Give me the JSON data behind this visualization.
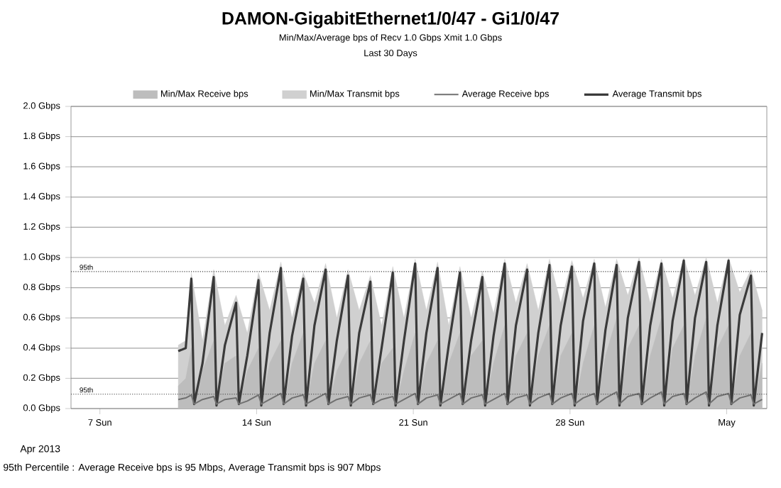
{
  "chart_data": {
    "type": "line",
    "title": "DAMON-GigabitEthernet1/0/47 - Gi1/0/47",
    "subtitle": "Min/Max/Average bps of    Recv 1.0 Gbps   Xmit 1.0 Gbps",
    "annotations": [
      "Last 30 Days",
      "Apr 2013",
      "95th Percentile : Average Receive bps is 95 Mbps, Average Transmit bps is 907 Mbps"
    ],
    "x": [
      "2013-04-10T12:00",
      "2013-04-10T20:00",
      "2013-04-11T02:00",
      "2013-04-11T05:00",
      "2013-04-11T14:00",
      "2013-04-12T02:00",
      "2013-04-12T05:00",
      "2013-04-12T14:00",
      "2013-04-13T02:00",
      "2013-04-13T05:00",
      "2013-04-13T14:00",
      "2013-04-14T02:00",
      "2013-04-14T05:00",
      "2013-04-14T14:00",
      "2013-04-15T02:00",
      "2013-04-15T05:00",
      "2013-04-15T14:00",
      "2013-04-16T02:00",
      "2013-04-16T05:00",
      "2013-04-16T14:00",
      "2013-04-17T02:00",
      "2013-04-17T05:00",
      "2013-04-17T14:00",
      "2013-04-18T02:00",
      "2013-04-18T05:00",
      "2013-04-18T14:00",
      "2013-04-19T02:00",
      "2013-04-19T05:00",
      "2013-04-19T14:00",
      "2013-04-20T02:00",
      "2013-04-20T05:00",
      "2013-04-20T14:00",
      "2013-04-21T02:00",
      "2013-04-21T05:00",
      "2013-04-21T14:00",
      "2013-04-22T02:00",
      "2013-04-22T05:00",
      "2013-04-22T14:00",
      "2013-04-23T02:00",
      "2013-04-23T05:00",
      "2013-04-23T14:00",
      "2013-04-24T02:00",
      "2013-04-24T05:00",
      "2013-04-24T14:00",
      "2013-04-25T02:00",
      "2013-04-25T05:00",
      "2013-04-25T14:00",
      "2013-04-26T02:00",
      "2013-04-26T05:00",
      "2013-04-26T14:00",
      "2013-04-27T02:00",
      "2013-04-27T05:00",
      "2013-04-27T14:00",
      "2013-04-28T02:00",
      "2013-04-28T05:00",
      "2013-04-28T14:00",
      "2013-04-29T02:00",
      "2013-04-29T05:00",
      "2013-04-29T14:00",
      "2013-04-30T02:00",
      "2013-04-30T05:00",
      "2013-04-30T14:00",
      "2013-05-01T02:00",
      "2013-05-01T05:00",
      "2013-05-01T14:00",
      "2013-05-02T02:00",
      "2013-05-02T05:00",
      "2013-05-02T14:00",
      "2013-05-03T02:00",
      "2013-05-03T05:00",
      "2013-05-03T14:00",
      "2013-05-04T02:00",
      "2013-05-04T05:00",
      "2013-05-04T14:00",
      "2013-05-05T02:00",
      "2013-05-05T05:00",
      "2013-05-05T14:00",
      "2013-05-06T02:00",
      "2013-05-06T05:00",
      "2013-05-06T14:00"
    ],
    "series": [
      {
        "name": "Min/Max Receive bps",
        "type": "area",
        "color": "#bdbdbd",
        "values": [
          0.15,
          0.2,
          0.4,
          0.02,
          0.25,
          0.45,
          0.02,
          0.3,
          0.35,
          0.02,
          0.25,
          0.4,
          0.02,
          0.3,
          0.45,
          0.02,
          0.3,
          0.5,
          0.02,
          0.3,
          0.45,
          0.02,
          0.25,
          0.4,
          0.02,
          0.3,
          0.45,
          0.02,
          0.3,
          0.4,
          0.02,
          0.25,
          0.5,
          0.02,
          0.3,
          0.45,
          0.02,
          0.3,
          0.5,
          0.02,
          0.35,
          0.45,
          0.02,
          0.3,
          0.55,
          0.02,
          0.35,
          0.5,
          0.02,
          0.35,
          0.55,
          0.02,
          0.35,
          0.5,
          0.02,
          0.3,
          0.55,
          0.02,
          0.35,
          0.6,
          0.02,
          0.4,
          0.55,
          0.02,
          0.35,
          0.6,
          0.02,
          0.4,
          0.55,
          0.02,
          0.35,
          0.6,
          0.02,
          0.4,
          0.55,
          0.02,
          0.35,
          0.5,
          0.02,
          0.3
        ]
      },
      {
        "name": "Min/Max Transmit bps",
        "type": "area",
        "color": "#d0d0d0",
        "values": [
          0.42,
          0.45,
          0.9,
          null,
          0.45,
          0.92,
          null,
          0.55,
          0.75,
          null,
          0.5,
          0.9,
          null,
          0.65,
          0.97,
          null,
          0.6,
          0.9,
          null,
          0.7,
          0.96,
          null,
          0.6,
          0.92,
          null,
          0.65,
          0.88,
          null,
          0.55,
          0.94,
          null,
          0.6,
          0.99,
          null,
          0.65,
          0.97,
          null,
          0.55,
          0.94,
          null,
          0.6,
          0.91,
          null,
          0.63,
          0.99,
          null,
          0.7,
          0.96,
          null,
          0.65,
          0.99,
          null,
          0.7,
          0.98,
          null,
          0.73,
          0.99,
          null,
          0.67,
          0.99,
          null,
          0.75,
          1.0,
          null,
          0.7,
          0.99,
          null,
          0.73,
          1.0,
          null,
          0.75,
          1.0,
          null,
          0.7,
          1.0,
          null,
          0.77,
          0.92,
          null,
          0.65
        ]
      },
      {
        "name": "Average Receive bps",
        "color": "#707070",
        "values": [
          0.06,
          0.07,
          0.09,
          0.03,
          0.06,
          0.08,
          0.03,
          0.06,
          0.07,
          0.03,
          0.05,
          0.09,
          0.03,
          0.06,
          0.1,
          0.03,
          0.07,
          0.09,
          0.03,
          0.06,
          0.1,
          0.03,
          0.06,
          0.08,
          0.03,
          0.07,
          0.09,
          0.03,
          0.06,
          0.08,
          0.03,
          0.06,
          0.1,
          0.03,
          0.07,
          0.09,
          0.03,
          0.06,
          0.1,
          0.03,
          0.07,
          0.09,
          0.03,
          0.06,
          0.1,
          0.03,
          0.07,
          0.09,
          0.03,
          0.07,
          0.1,
          0.03,
          0.07,
          0.1,
          0.03,
          0.07,
          0.1,
          0.03,
          0.07,
          0.11,
          0.03,
          0.08,
          0.1,
          0.03,
          0.07,
          0.11,
          0.03,
          0.08,
          0.1,
          0.03,
          0.07,
          0.11,
          0.03,
          0.08,
          0.1,
          0.03,
          0.07,
          0.09,
          0.03,
          0.06
        ]
      },
      {
        "name": "Average Transmit bps",
        "color": "#3a3a3a",
        "values": [
          0.38,
          0.4,
          0.86,
          0.03,
          0.3,
          0.87,
          0.02,
          0.42,
          0.7,
          0.03,
          0.35,
          0.85,
          0.02,
          0.5,
          0.93,
          0.03,
          0.48,
          0.86,
          0.02,
          0.55,
          0.92,
          0.03,
          0.45,
          0.88,
          0.02,
          0.5,
          0.84,
          0.03,
          0.4,
          0.9,
          0.02,
          0.45,
          0.96,
          0.03,
          0.5,
          0.93,
          0.02,
          0.42,
          0.9,
          0.03,
          0.45,
          0.87,
          0.02,
          0.48,
          0.96,
          0.03,
          0.55,
          0.92,
          0.02,
          0.5,
          0.95,
          0.03,
          0.55,
          0.94,
          0.02,
          0.58,
          0.96,
          0.03,
          0.52,
          0.95,
          0.02,
          0.6,
          0.97,
          0.03,
          0.55,
          0.96,
          0.02,
          0.58,
          0.98,
          0.03,
          0.6,
          0.97,
          0.02,
          0.55,
          0.98,
          0.03,
          0.62,
          0.88,
          0.02,
          0.5
        ]
      }
    ],
    "xlim": [
      "2013-04-05T17:00",
      "2013-05-06T19:00"
    ],
    "xticks": [
      {
        "value": "2013-04-07",
        "label": "7 Sun"
      },
      {
        "value": "2013-04-14",
        "label": "14 Sun"
      },
      {
        "value": "2013-04-21",
        "label": "21 Sun"
      },
      {
        "value": "2013-04-28",
        "label": "28 Sun"
      },
      {
        "value": "2013-05-05",
        "label": "May"
      }
    ],
    "ylim": [
      0,
      2.0
    ],
    "yticks": [
      {
        "value": 0,
        "label": "0.0 Gbps"
      },
      {
        "value": 0.2,
        "label": "0.2 Gbps"
      },
      {
        "value": 0.4,
        "label": "0.4 Gbps"
      },
      {
        "value": 0.6,
        "label": "0.6 Gbps"
      },
      {
        "value": 0.8,
        "label": "0.8 Gbps"
      },
      {
        "value": 1.0,
        "label": "1.0 Gbps"
      },
      {
        "value": 1.2,
        "label": "1.2 Gbps"
      },
      {
        "value": 1.4,
        "label": "1.4 Gbps"
      },
      {
        "value": 1.6,
        "label": "1.6 Gbps"
      },
      {
        "value": 1.8,
        "label": "1.8 Gbps"
      },
      {
        "value": 2.0,
        "label": "2.0 Gbps"
      }
    ],
    "ref_lines": [
      {
        "axis": "y",
        "value": 0.095,
        "label": "95th",
        "color": "#404040",
        "line_style": "dotted"
      },
      {
        "axis": "y",
        "value": 0.907,
        "label": "95th",
        "color": "#404040",
        "line_style": "dotted"
      }
    ],
    "grid": "y",
    "legend": "top",
    "marker": "none"
  }
}
